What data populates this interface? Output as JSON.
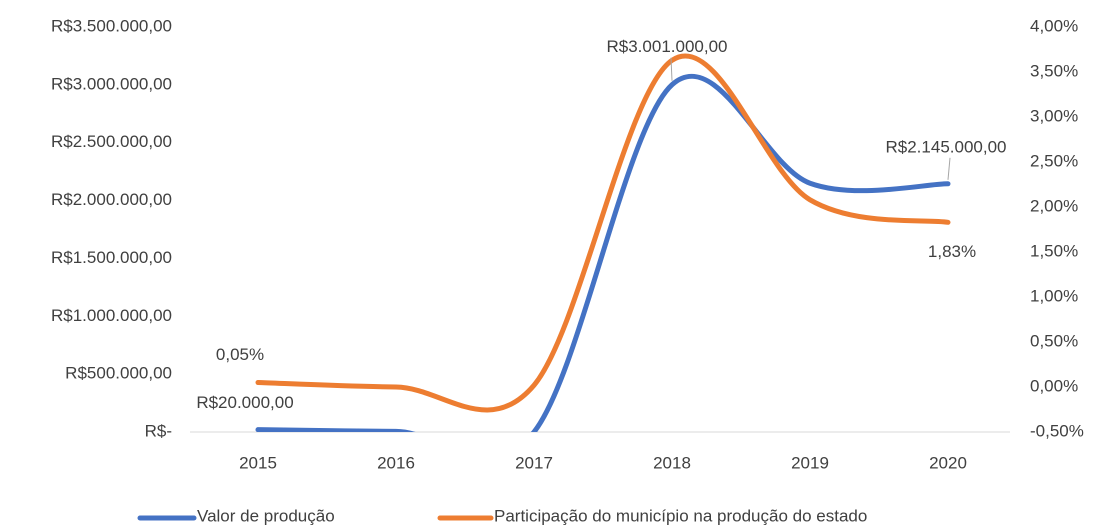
{
  "chart_data": {
    "type": "line",
    "categories": [
      "2015",
      "2016",
      "2017",
      "2018",
      "2019",
      "2020"
    ],
    "series": [
      {
        "name": "Valor de produção",
        "color": "#4472c4",
        "axis": "y",
        "values": [
          20000,
          5000,
          0,
          3001000,
          2150000,
          2145000
        ],
        "value_labels": [
          "R$20.000,00",
          null,
          null,
          "R$3.001.000,00",
          null,
          "R$2.145.000,00"
        ]
      },
      {
        "name": "Participação do município na produção do estado",
        "color": "#ed7d31",
        "axis": "y2",
        "values": [
          0.05,
          0.0,
          0.02,
          3.63,
          2.08,
          1.83
        ],
        "value_labels": [
          "0,05%",
          null,
          null,
          null,
          null,
          "1,83%"
        ]
      }
    ],
    "ylim": [
      0,
      3500000
    ],
    "yticks": [
      {
        "value": 0,
        "label": "R$-"
      },
      {
        "value": 500000,
        "label": "R$500.000,00"
      },
      {
        "value": 1000000,
        "label": "R$1.000.000,00"
      },
      {
        "value": 1500000,
        "label": "R$1.500.000,00"
      },
      {
        "value": 2000000,
        "label": "R$2.000.000,00"
      },
      {
        "value": 2500000,
        "label": "R$2.500.000,00"
      },
      {
        "value": 3000000,
        "label": "R$3.000.000,00"
      },
      {
        "value": 3500000,
        "label": "R$3.500.000,00"
      }
    ],
    "y2lim": [
      -0.5,
      4
    ],
    "y2ticks": [
      {
        "value": -0.5,
        "label": "-0,50%"
      },
      {
        "value": 0,
        "label": "0,00%"
      },
      {
        "value": 0.5,
        "label": "0,50%"
      },
      {
        "value": 1,
        "label": "1,00%"
      },
      {
        "value": 1.5,
        "label": "1,50%"
      },
      {
        "value": 2,
        "label": "2,00%"
      },
      {
        "value": 2.5,
        "label": "2,50%"
      },
      {
        "value": 3,
        "label": "3,00%"
      },
      {
        "value": 3.5,
        "label": "3,50%"
      },
      {
        "value": 4,
        "label": "4,00%"
      }
    ],
    "grid": false,
    "legend": "bottom"
  }
}
